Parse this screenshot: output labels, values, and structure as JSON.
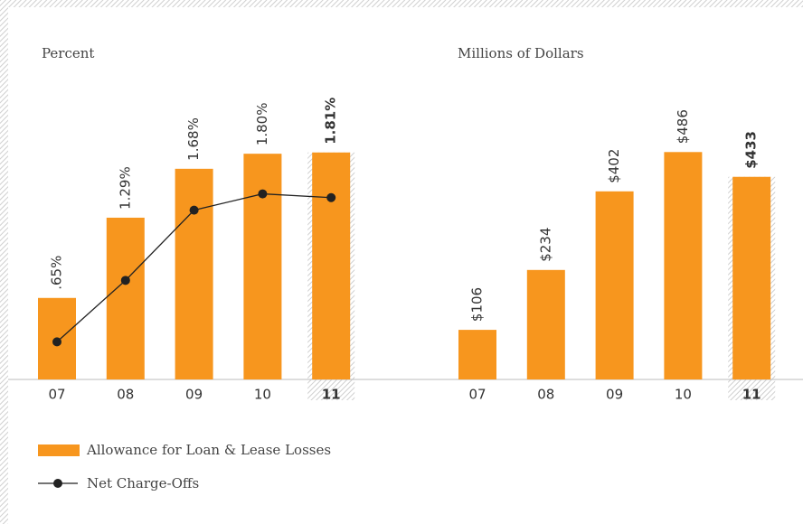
{
  "chart_data": [
    {
      "type": "bar",
      "subtitle": "Percent",
      "categories": [
        "07",
        "08",
        "09",
        "10",
        "11"
      ],
      "highlight_index": 4,
      "ylim": [
        0,
        2.5
      ],
      "series": [
        {
          "name": "Allowance for Loan & Lease Losses",
          "type": "bar",
          "color": "#f7961e",
          "values": [
            0.65,
            1.29,
            1.68,
            1.8,
            1.81
          ],
          "value_labels": [
            ".65%",
            "1.29%",
            "1.68%",
            "1.80%",
            "1.81%"
          ]
        },
        {
          "name": "Net Charge-Offs",
          "type": "line",
          "color": "#222222",
          "values": [
            0.3,
            0.79,
            1.35,
            1.48,
            1.45
          ]
        }
      ]
    },
    {
      "type": "bar",
      "subtitle": "Millions of Dollars",
      "categories": [
        "07",
        "08",
        "09",
        "10",
        "11"
      ],
      "highlight_index": 4,
      "ylim": [
        0,
        670
      ],
      "color": "#f7961e",
      "values": [
        106,
        234,
        402,
        486,
        433
      ],
      "value_labels": [
        "$106",
        "$234",
        "$402",
        "$486",
        "$433"
      ]
    }
  ]
}
